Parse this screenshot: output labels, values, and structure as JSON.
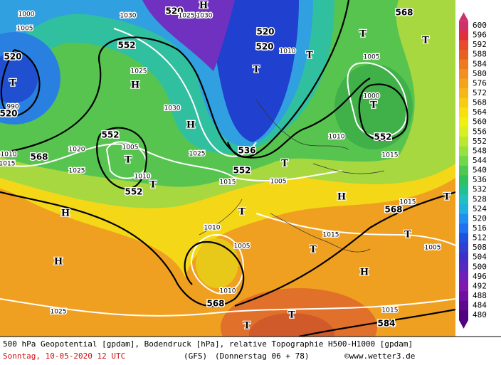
{
  "colorbar": {
    "values": [
      600,
      596,
      592,
      588,
      584,
      580,
      576,
      572,
      568,
      564,
      560,
      556,
      552,
      548,
      544,
      540,
      536,
      532,
      528,
      524,
      520,
      516,
      512,
      508,
      504,
      500,
      496,
      492,
      488,
      484,
      480
    ],
    "colors": [
      "#d0306a",
      "#e03040",
      "#e84a2a",
      "#e86020",
      "#ee7a20",
      "#f09020",
      "#f4a41c",
      "#f6b818",
      "#f8cc14",
      "#f8e010",
      "#f0f010",
      "#d8f020",
      "#b8e830",
      "#98e040",
      "#70d848",
      "#50c850",
      "#30c060",
      "#20c090",
      "#20c0c0",
      "#20b0e0",
      "#2090f0",
      "#2070f0",
      "#2050e0",
      "#3040d0",
      "#4030c8",
      "#5828c0",
      "#7020b8",
      "#8018b0",
      "#7010a0",
      "#600890",
      "#500080"
    ]
  },
  "map_labels": [
    "520",
    "1030",
    "1025",
    "1030",
    "H",
    "552",
    "1025",
    "H",
    "1030",
    "H",
    "552",
    "1005",
    "T",
    "1010",
    "552",
    "T",
    "1025",
    "520",
    "520",
    "T",
    "536",
    "552",
    "1015",
    "T",
    "1010",
    "T",
    "T",
    "1005",
    "1000",
    "T",
    "552",
    "1010",
    "1015",
    "T",
    "568",
    "568",
    "H",
    "H",
    "1025",
    "1025",
    "1020",
    "1010",
    "1015",
    "520",
    "T",
    "520",
    "990",
    "1005",
    "1000",
    "T",
    "1010",
    "1005",
    "1010",
    "568",
    "T",
    "T",
    "584",
    "1015",
    "H",
    "T",
    "1005",
    "T",
    "1015",
    "H",
    "568",
    "1015",
    "T",
    "1005",
    "1015",
    "1010"
  ],
  "footer": {
    "line1": "500 hPa Geopotential [gpdam], Bodendruck [hPa], relative Topographie H500-H1000 [gpdam]",
    "date": "Sonntag, 10-05-2020  12 UTC",
    "model": "(GFS)",
    "run": "(Donnerstag 06 + 78)",
    "credit": "©www.wetter3.de"
  }
}
